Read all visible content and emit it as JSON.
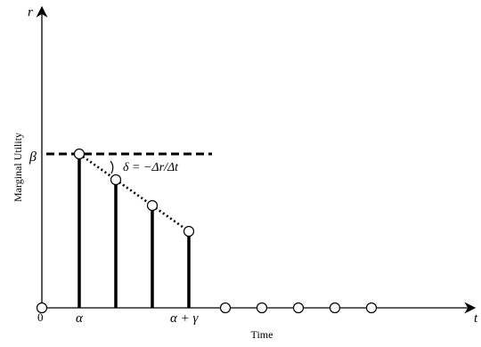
{
  "axes": {
    "y_symbol": "r",
    "x_symbol": "t",
    "origin": "0",
    "ylabel": "Marginal Utility",
    "xlabel": "Time"
  },
  "labels": {
    "beta": "β",
    "alpha": "α",
    "alpha_plus_gamma": "α + γ"
  },
  "annotation": {
    "slope_formula": "δ = −Δr/Δt"
  },
  "colors": {
    "ink": "#000000",
    "background": "#ffffff"
  }
}
